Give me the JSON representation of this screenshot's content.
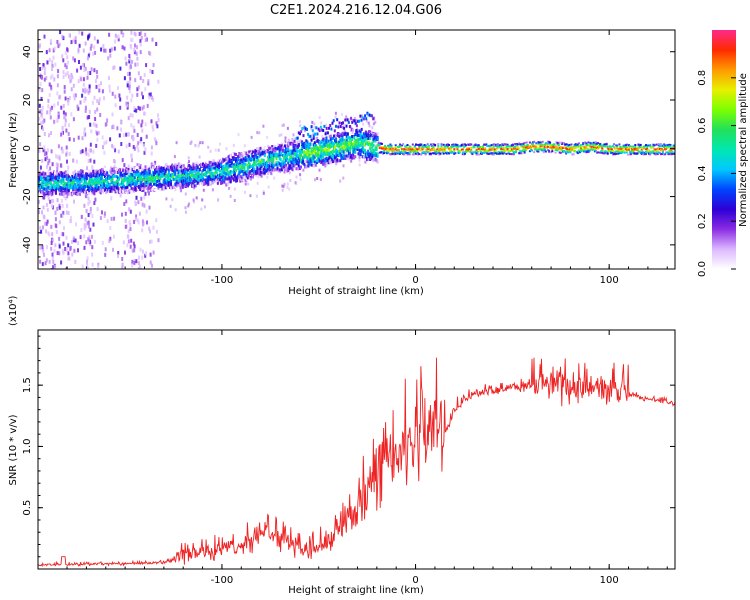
{
  "title": "C2E1.2024.216.12.04.G06",
  "colors": {
    "snr_line": "#ee2222",
    "colorbar": [
      "#ffffff",
      "#dcb8ff",
      "#8a2be2",
      "#2d00d6",
      "#0044ff",
      "#00c8ff",
      "#00e8b0",
      "#22e05a",
      "#7dff00",
      "#e8f000",
      "#ff9a00",
      "#ff2a00",
      "#ff2a8a"
    ]
  },
  "chart_data": [
    {
      "type": "heatmap",
      "xlabel": "Height of straight line (km)",
      "ylabel": "Frequency (Hz)",
      "xlim": [
        -195,
        134
      ],
      "ylim": [
        -50,
        49
      ],
      "xticks": [
        -100,
        0,
        100
      ],
      "yticks": [
        -40,
        -20,
        0,
        20,
        40
      ],
      "colorbar": {
        "label": "Normalized spectral amplitude",
        "range": [
          0.0,
          1.0
        ],
        "ticks": [
          0.0,
          0.2,
          0.4,
          0.6,
          0.8
        ]
      },
      "ridge": {
        "x": [
          -195,
          -180,
          -160,
          -140,
          -120,
          -100,
          -80,
          -60,
          -40,
          -30,
          -22,
          -15,
          -5,
          0,
          10,
          30,
          40,
          50,
          60,
          70,
          80,
          90,
          100,
          110,
          120,
          134
        ],
        "y": [
          -14,
          -14,
          -13,
          -12,
          -11,
          -9,
          -5,
          -2,
          1,
          3,
          1,
          0,
          0,
          0,
          0,
          0,
          0,
          0,
          1,
          1,
          0,
          1,
          0,
          0,
          0,
          0
        ]
      }
    },
    {
      "type": "line",
      "xlabel": "Height of straight line (km)",
      "ylabel": "SNR (10 * v/v)",
      "y_multiplier": "(x10⁴)",
      "xlim": [
        -195,
        134
      ],
      "ylim": [
        0,
        1.95
      ],
      "xticks": [
        -100,
        0,
        100
      ],
      "yticks": [
        0.5,
        1.0,
        1.5
      ],
      "series": [
        {
          "x": [
            -195,
            -180,
            -160,
            -140,
            -130,
            -125,
            -120,
            -110,
            -100,
            -90,
            -85,
            -80,
            -75,
            -70,
            -65,
            -60,
            -55,
            -50,
            -45,
            -40,
            -35,
            -30,
            -25,
            -20,
            -15,
            -10,
            -5,
            0,
            5,
            10,
            15,
            20,
            25,
            30,
            40,
            50,
            60,
            70,
            80,
            90,
            100,
            110,
            120,
            134
          ],
          "y": [
            0.03,
            0.035,
            0.04,
            0.045,
            0.05,
            0.07,
            0.1,
            0.12,
            0.14,
            0.18,
            0.22,
            0.3,
            0.25,
            0.22,
            0.18,
            0.14,
            0.15,
            0.18,
            0.22,
            0.28,
            0.35,
            0.42,
            0.55,
            0.75,
            0.85,
            0.9,
            0.95,
            1.0,
            1.05,
            1.1,
            1.1,
            1.3,
            1.38,
            1.42,
            1.45,
            1.48,
            1.48,
            1.47,
            1.46,
            1.45,
            1.44,
            1.42,
            1.38,
            1.35
          ]
        }
      ]
    }
  ]
}
